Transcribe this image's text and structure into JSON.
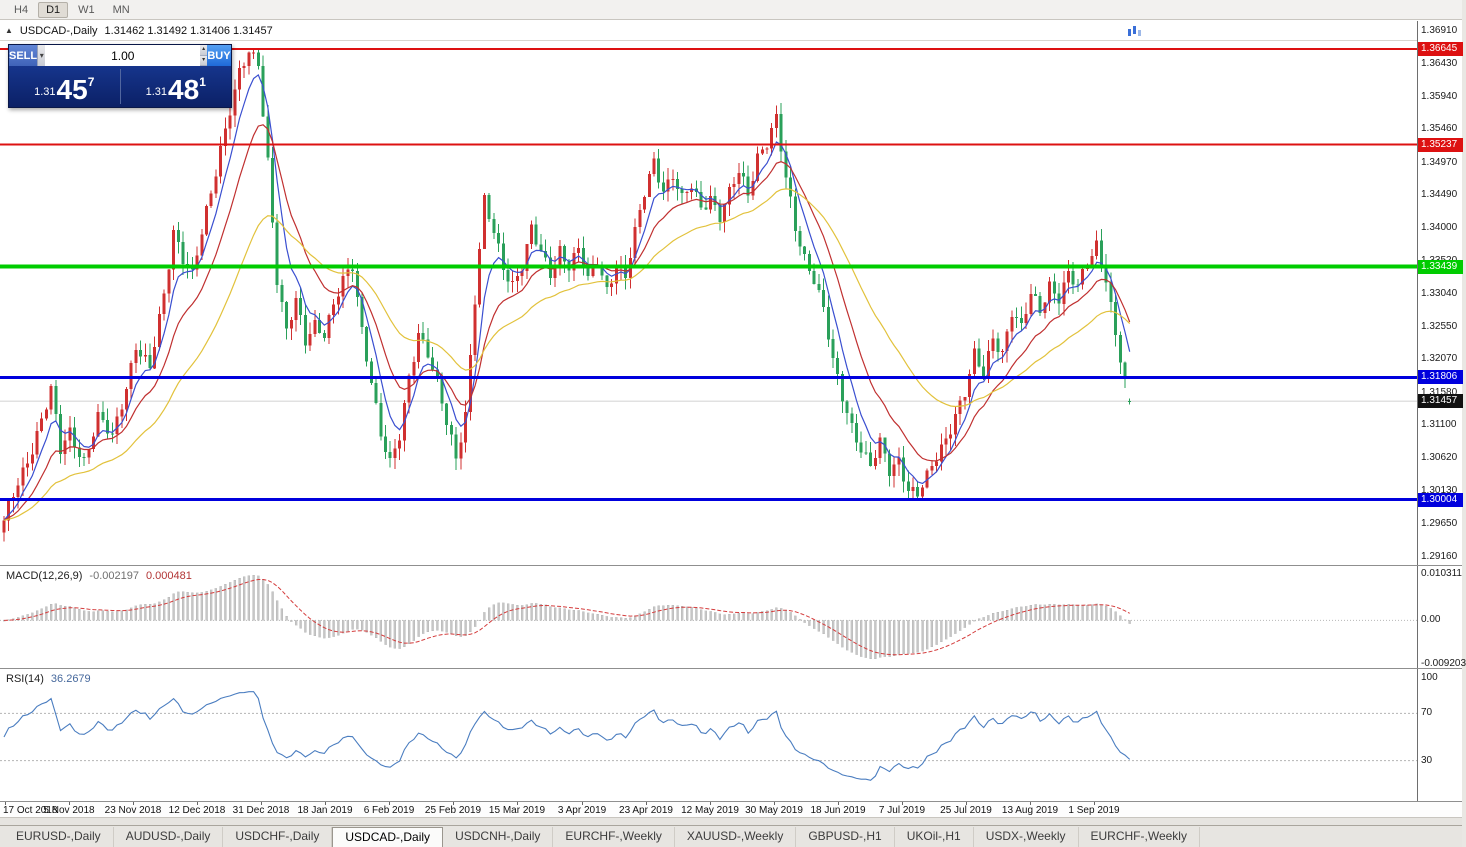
{
  "toolbar": {
    "timeframes": [
      {
        "label": "H4",
        "active": false
      },
      {
        "label": "D1",
        "active": true
      },
      {
        "label": "W1",
        "active": false
      },
      {
        "label": "MN",
        "active": false
      }
    ]
  },
  "chart_header": {
    "collapse_glyph": "▲",
    "symbol": "USDCAD-,Daily",
    "ohlc": "1.31462 1.31492 1.31406 1.31457"
  },
  "trade_panel": {
    "sell_label": "SELL",
    "buy_label": "BUY",
    "volume": "1.00",
    "sell_price": {
      "prefix": "1.31",
      "big": "45",
      "sup": "7"
    },
    "buy_price": {
      "prefix": "1.31",
      "big": "48",
      "sup": "1"
    }
  },
  "macd_panel": {
    "title": "MACD(12,26,9)",
    "value_main": "-0.002197",
    "value_signal": "0.000481",
    "axis_ticks": [
      "0.010311",
      "0.00",
      "-0.009203"
    ]
  },
  "rsi_panel": {
    "title": "RSI(14)",
    "value": "36.2679",
    "axis_ticks": [
      "100",
      "70",
      "30"
    ]
  },
  "tab_bar": {
    "tabs": [
      "EURUSD-,Daily",
      "AUDUSD-,Daily",
      "USDCHF-,Daily",
      "USDCAD-,Daily",
      "USDCNH-,Daily",
      "EURCHF-,Weekly",
      "XAUUSD-,Weekly",
      "GBPUSD-,H1",
      "UKOil-,H1",
      "USDX-,Weekly",
      "EURCHF-,Weekly"
    ],
    "active": "USDCAD-,Daily"
  },
  "chart_data": {
    "type": "candlestick",
    "symbol": "USDCAD",
    "period": "Daily",
    "last_ohlc": {
      "open": 1.31462,
      "high": 1.31492,
      "low": 1.31406,
      "close": 1.31457
    },
    "current_price": 1.31457,
    "current_price_label": "1.31457",
    "y_range": [
      1.29042,
      1.37013
    ],
    "y_axis_ticks": [
      "1.36910",
      "1.36430",
      "1.35940",
      "1.35460",
      "1.34970",
      "1.34490",
      "1.34000",
      "1.33520",
      "1.33040",
      "1.32550",
      "1.32070",
      "1.31580",
      "1.31100",
      "1.30620",
      "1.30130",
      "1.29650",
      "1.29160"
    ],
    "x_axis_labels": [
      "17 Oct 2018",
      "5 Nov 2018",
      "23 Nov 2018",
      "12 Dec 2018",
      "31 Dec 2018",
      "18 Jan 2019",
      "6 Feb 2019",
      "25 Feb 2019",
      "15 Mar 2019",
      "3 Apr 2019",
      "23 Apr 2019",
      "12 May 2019",
      "30 May 2019",
      "18 Jun 2019",
      "7 Jul 2019",
      "25 Jul 2019",
      "13 Aug 2019",
      "1 Sep 2019"
    ],
    "levels": [
      {
        "price": 1.36645,
        "label": "1.36645",
        "color": "#dd1111",
        "width": 2
      },
      {
        "price": 1.35237,
        "label": "1.35237",
        "color": "#dd1111",
        "width": 2
      },
      {
        "price": 1.33439,
        "label": "1.33439",
        "color": "#00cc00",
        "width": 4
      },
      {
        "price": 1.31806,
        "label": "1.31806",
        "color": "#0000dd",
        "width": 3
      },
      {
        "price": 1.30004,
        "label": "1.30004",
        "color": "#0000dd",
        "width": 3
      }
    ],
    "bull_color": "#d03030",
    "bear_color": "#2aa05a",
    "candle_count": 240,
    "close_waypoints": [
      [
        0,
        1.2965
      ],
      [
        2,
        1.3005
      ],
      [
        5,
        1.306
      ],
      [
        8,
        1.312
      ],
      [
        10,
        1.316
      ],
      [
        12,
        1.307
      ],
      [
        14,
        1.31
      ],
      [
        17,
        1.306
      ],
      [
        20,
        1.312
      ],
      [
        23,
        1.309
      ],
      [
        26,
        1.317
      ],
      [
        28,
        1.323
      ],
      [
        31,
        1.319
      ],
      [
        34,
        1.33
      ],
      [
        36,
        1.34
      ],
      [
        38,
        1.336
      ],
      [
        40,
        1.333
      ],
      [
        42,
        1.339
      ],
      [
        44,
        1.345
      ],
      [
        46,
        1.352
      ],
      [
        48,
        1.358
      ],
      [
        50,
        1.363
      ],
      [
        52,
        1.3655
      ],
      [
        54,
        1.364
      ],
      [
        56,
        1.35
      ],
      [
        58,
        1.333
      ],
      [
        60,
        1.325
      ],
      [
        62,
        1.329
      ],
      [
        64,
        1.323
      ],
      [
        66,
        1.326
      ],
      [
        68,
        1.325
      ],
      [
        70,
        1.329
      ],
      [
        72,
        1.332
      ],
      [
        74,
        1.334
      ],
      [
        76,
        1.325
      ],
      [
        78,
        1.318
      ],
      [
        80,
        1.31
      ],
      [
        82,
        1.305
      ],
      [
        84,
        1.309
      ],
      [
        86,
        1.318
      ],
      [
        88,
        1.325
      ],
      [
        90,
        1.322
      ],
      [
        92,
        1.317
      ],
      [
        94,
        1.311
      ],
      [
        96,
        1.306
      ],
      [
        98,
        1.313
      ],
      [
        100,
        1.33
      ],
      [
        102,
        1.344
      ],
      [
        104,
        1.339
      ],
      [
        106,
        1.334
      ],
      [
        108,
        1.332
      ],
      [
        110,
        1.335
      ],
      [
        112,
        1.34
      ],
      [
        114,
        1.336
      ],
      [
        116,
        1.333
      ],
      [
        118,
        1.337
      ],
      [
        120,
        1.335
      ],
      [
        122,
        1.337
      ],
      [
        124,
        1.332
      ],
      [
        126,
        1.335
      ],
      [
        128,
        1.331
      ],
      [
        130,
        1.335
      ],
      [
        132,
        1.333
      ],
      [
        134,
        1.339
      ],
      [
        136,
        1.345
      ],
      [
        138,
        1.35
      ],
      [
        140,
        1.346
      ],
      [
        142,
        1.348
      ],
      [
        144,
        1.344
      ],
      [
        146,
        1.346
      ],
      [
        148,
        1.343
      ],
      [
        150,
        1.345
      ],
      [
        152,
        1.342
      ],
      [
        154,
        1.345
      ],
      [
        156,
        1.348
      ],
      [
        158,
        1.345
      ],
      [
        160,
        1.351
      ],
      [
        162,
        1.353
      ],
      [
        164,
        1.356
      ],
      [
        166,
        1.347
      ],
      [
        168,
        1.34
      ],
      [
        170,
        1.336
      ],
      [
        172,
        1.333
      ],
      [
        174,
        1.328
      ],
      [
        176,
        1.32
      ],
      [
        178,
        1.315
      ],
      [
        180,
        1.311
      ],
      [
        182,
        1.308
      ],
      [
        184,
        1.305
      ],
      [
        186,
        1.308
      ],
      [
        188,
        1.304
      ],
      [
        190,
        1.306
      ],
      [
        192,
        1.302
      ],
      [
        194,
        1.301
      ],
      [
        196,
        1.303
      ],
      [
        198,
        1.306
      ],
      [
        200,
        1.309
      ],
      [
        202,
        1.313
      ],
      [
        204,
        1.316
      ],
      [
        206,
        1.321
      ],
      [
        208,
        1.318
      ],
      [
        210,
        1.324
      ],
      [
        212,
        1.322
      ],
      [
        214,
        1.328
      ],
      [
        216,
        1.325
      ],
      [
        218,
        1.33
      ],
      [
        220,
        1.328
      ],
      [
        222,
        1.332
      ],
      [
        224,
        1.33
      ],
      [
        226,
        1.333
      ],
      [
        228,
        1.331
      ],
      [
        230,
        1.335
      ],
      [
        232,
        1.338
      ],
      [
        234,
        1.333
      ],
      [
        236,
        1.324
      ],
      [
        238,
        1.317
      ],
      [
        239,
        1.3146
      ]
    ],
    "moving_averages": [
      {
        "name": "fast",
        "period": 6,
        "color": "#3a4fd0"
      },
      {
        "name": "medium",
        "period": 14,
        "color": "#c03030"
      },
      {
        "name": "slow",
        "period": 34,
        "color": "#e2c23c"
      }
    ],
    "macd": {
      "fast": 12,
      "slow": 26,
      "signal": 9,
      "histogram_color": "#c6c6c6",
      "signal_color": "#d43c3c",
      "display_range": [
        -0.01,
        0.0112
      ],
      "last_values": [
        -0.002197,
        0.000481
      ]
    },
    "rsi": {
      "period": 14,
      "color": "#4a7dc0",
      "levels": [
        70,
        30
      ],
      "range": [
        0,
        100
      ],
      "last_value": 36.2679
    }
  }
}
